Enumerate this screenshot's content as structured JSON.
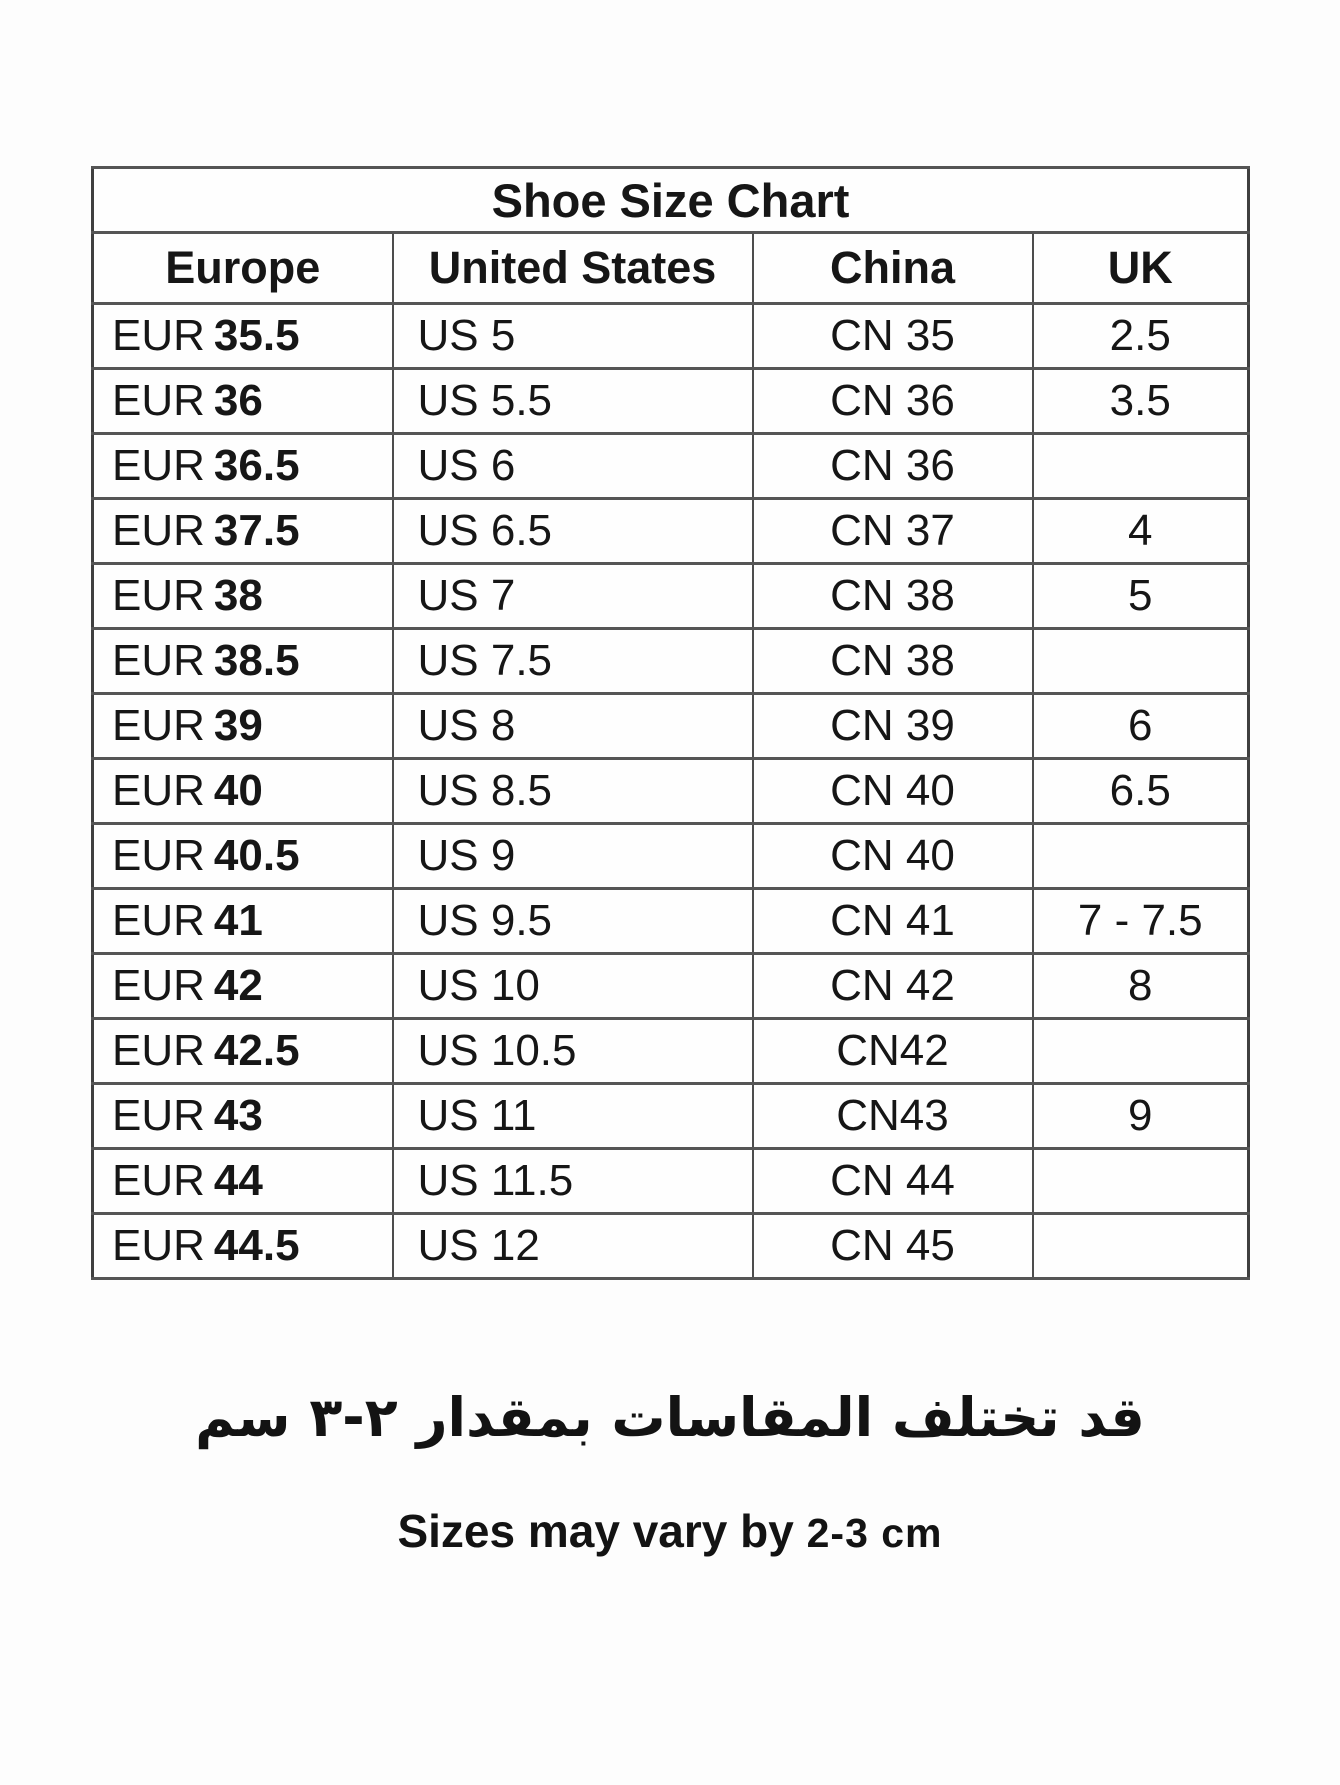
{
  "table": {
    "title": "Shoe Size Chart",
    "headers": [
      "Europe",
      "United States",
      "China",
      "UK"
    ],
    "rows": [
      {
        "europe_prefix": "EUR",
        "europe_size": "35.5",
        "us": "US 5",
        "china": "CN 35",
        "uk": "2.5"
      },
      {
        "europe_prefix": "EUR",
        "europe_size": "36",
        "us": "US 5.5",
        "china": "CN 36",
        "uk": "3.5"
      },
      {
        "europe_prefix": "EUR",
        "europe_size": "36.5",
        "us": "US 6",
        "china": "CN 36",
        "uk": ""
      },
      {
        "europe_prefix": "EUR",
        "europe_size": "37.5",
        "us": "US 6.5",
        "china": "CN 37",
        "uk": "4"
      },
      {
        "europe_prefix": "EUR",
        "europe_size": "38",
        "us": "US 7",
        "china": "CN 38",
        "uk": "5"
      },
      {
        "europe_prefix": "EUR",
        "europe_size": "38.5",
        "us": "US 7.5",
        "china": "CN 38",
        "uk": ""
      },
      {
        "europe_prefix": "EUR",
        "europe_size": "39",
        "us": "US 8",
        "china": "CN 39",
        "uk": "6"
      },
      {
        "europe_prefix": "EUR",
        "europe_size": "40",
        "us": "US 8.5",
        "china": "CN 40",
        "uk": "6.5"
      },
      {
        "europe_prefix": "EUR",
        "europe_size": "40.5",
        "us": "US 9",
        "china": "CN 40",
        "uk": ""
      },
      {
        "europe_prefix": "EUR",
        "europe_size": "41",
        "us": "US 9.5",
        "china": "CN 41",
        "uk": "7 - 7.5"
      },
      {
        "europe_prefix": "EUR",
        "europe_size": "42",
        "us": "US 10",
        "china": "CN 42",
        "uk": "8"
      },
      {
        "europe_prefix": "EUR",
        "europe_size": "42.5",
        "us": "US 10.5",
        "china": "CN42",
        "uk": ""
      },
      {
        "europe_prefix": "EUR",
        "europe_size": "43",
        "us": "US 11",
        "china": "CN43",
        "uk": "9"
      },
      {
        "europe_prefix": "EUR",
        "europe_size": "44",
        "us": "US 11.5",
        "china": "CN 44",
        "uk": ""
      },
      {
        "europe_prefix": "EUR",
        "europe_size": "44.5",
        "us": "US 12",
        "china": "CN 45",
        "uk": ""
      }
    ]
  },
  "footer": {
    "arabic_note": "قد تختلف المقاسات بمقدار ٢-٣ سم",
    "english_note_text": "Sizes may vary by",
    "english_note_value": "2-3 cm"
  },
  "colors": {
    "text": "#161616",
    "table_border": "#4d4d4d",
    "background": "#fdfdfd"
  }
}
